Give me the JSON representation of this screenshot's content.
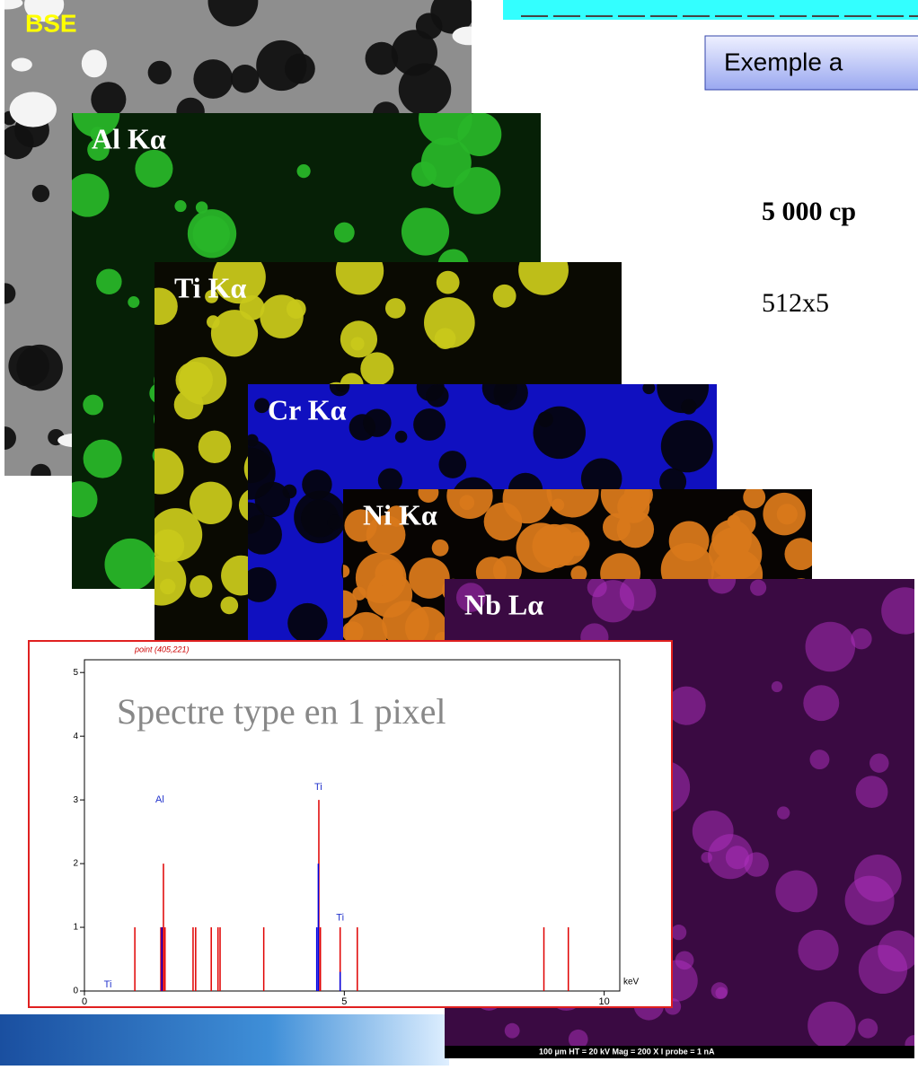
{
  "slide": {
    "example": "Exemple a",
    "rate": "5 000 cp",
    "size": "512x5",
    "maps": [
      "BSE",
      "Al Kα",
      "Ti Kα",
      "Cr Kα",
      "Ni Kα",
      "Nb Lα"
    ],
    "scale_bar": "100 µm   HT = 20 kV   Mag = 200 X   I probe = 1 nA"
  },
  "chart_data": {
    "type": "stem",
    "title": "point (405,221)",
    "annotation": "Spectre type en 1 pixel",
    "x_label": "keV",
    "xlim": [
      0,
      10.3
    ],
    "ylim": [
      0,
      5.2
    ],
    "xticks": [
      0,
      5,
      10
    ],
    "yticks": [
      0,
      1,
      2,
      3,
      4,
      5
    ],
    "series": [
      {
        "color": "#e00000",
        "x": [
          0.97,
          1.47,
          1.5,
          1.52,
          1.55,
          2.09,
          2.14,
          2.44,
          2.57,
          2.61,
          3.45,
          4.51,
          4.54,
          4.92,
          5.25,
          8.84,
          9.31
        ],
        "values": [
          1,
          1,
          1,
          2,
          1,
          1,
          1,
          1,
          1,
          1,
          1,
          3,
          1,
          1,
          1,
          1,
          1
        ]
      },
      {
        "color": "#0000e0",
        "x": [
          1.49,
          4.47,
          4.5,
          4.92
        ],
        "values": [
          1,
          1,
          2,
          0.3
        ]
      }
    ],
    "peak_labels": [
      {
        "text": "Al",
        "x": 1.45,
        "y": 3.0
      },
      {
        "text": "Ti",
        "x": 4.5,
        "y": 3.2
      },
      {
        "text": "Ti",
        "x": 4.92,
        "y": 1.15
      },
      {
        "text": "Ti",
        "x": 0.45,
        "y": 0.1
      }
    ]
  }
}
